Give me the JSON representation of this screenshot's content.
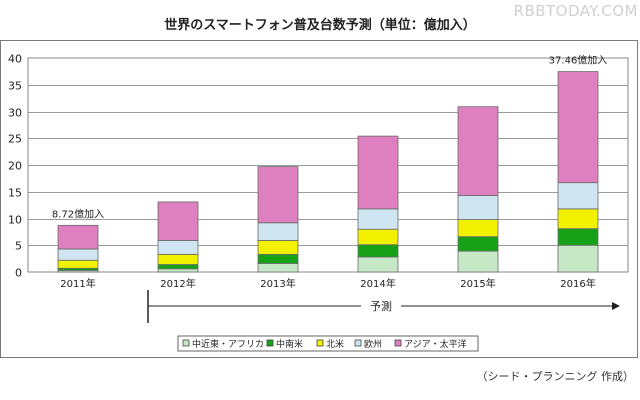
{
  "watermark": "RBBTODAY.COM",
  "source": "（シード・プランニング 作成）",
  "chart_data": {
    "type": "bar",
    "stacked": true,
    "title": "世界のスマートフォン普及台数予測（単位：億加入）",
    "categories": [
      "2011年",
      "2012年",
      "2013年",
      "2014年",
      "2015年",
      "2016年"
    ],
    "series": [
      {
        "name": "中近東・アフリカ",
        "color": "#c6e8c6",
        "values": [
          0.3,
          0.6,
          1.6,
          2.8,
          3.9,
          5.0
        ]
      },
      {
        "name": "中南米",
        "color": "#16a116",
        "values": [
          0.4,
          0.8,
          1.7,
          2.3,
          2.7,
          3.1
        ]
      },
      {
        "name": "北米",
        "color": "#f2f200",
        "values": [
          1.5,
          1.9,
          2.6,
          2.9,
          3.2,
          3.7
        ]
      },
      {
        "name": "欧州",
        "color": "#cfe6f2",
        "values": [
          2.1,
          2.6,
          3.3,
          3.8,
          4.5,
          4.9
        ]
      },
      {
        "name": "アジア・太平洋",
        "color": "#de7fbf",
        "values": [
          4.42,
          7.2,
          10.5,
          13.6,
          16.6,
          20.76
        ]
      }
    ],
    "ylim": [
      0,
      40
    ],
    "yticks": [
      0,
      5,
      10,
      15,
      20,
      25,
      30,
      35,
      40
    ],
    "grid": true,
    "legend": "bottom",
    "annotations": [
      {
        "category": "2011年",
        "text": "8.72億加入"
      },
      {
        "category": "2016年",
        "text": "37.46億加入"
      }
    ],
    "forecast_label": "予測",
    "forecast_from": "2012年"
  }
}
